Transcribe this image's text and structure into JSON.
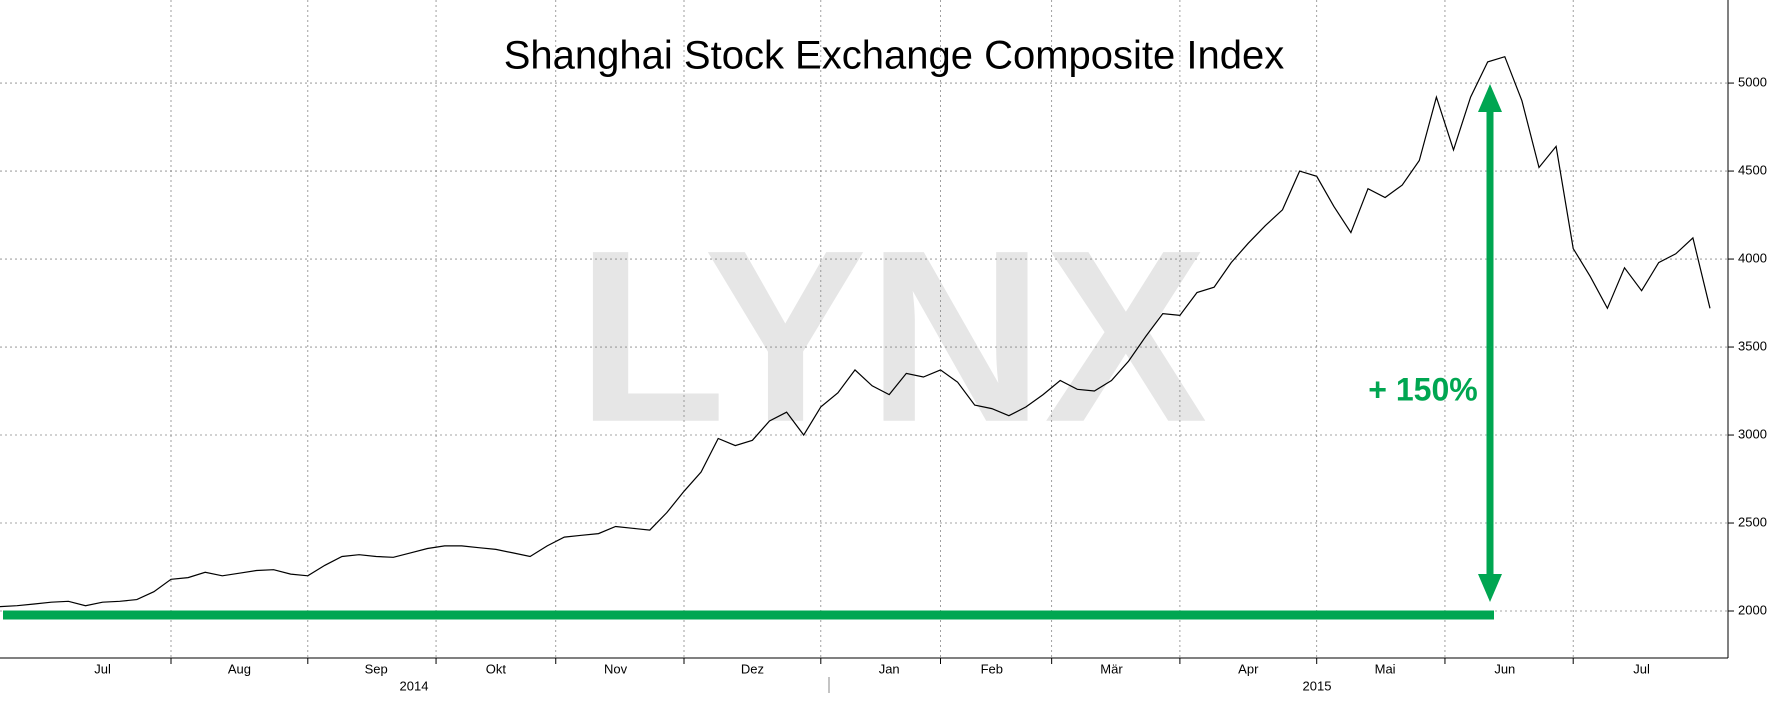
{
  "chart_data": {
    "type": "line",
    "title": "Shanghai Stock Exchange Composite Index",
    "watermark": "LYNX",
    "annotation": "+ 150%",
    "categories": [
      null,
      null,
      null,
      null,
      null,
      null,
      "Jul",
      null,
      null,
      null,
      null,
      null,
      null,
      null,
      "Aug",
      null,
      null,
      null,
      null,
      null,
      null,
      null,
      "Sep",
      null,
      null,
      null,
      null,
      null,
      null,
      "Okt",
      null,
      null,
      null,
      null,
      null,
      null,
      "Nov",
      null,
      null,
      null,
      null,
      null,
      null,
      null,
      "Dez",
      null,
      null,
      null,
      null,
      null,
      null,
      null,
      "Jan",
      null,
      null,
      null,
      null,
      null,
      "Feb",
      null,
      null,
      null,
      null,
      null,
      null,
      "Mär",
      null,
      null,
      null,
      null,
      null,
      null,
      null,
      "Apr",
      null,
      null,
      null,
      null,
      null,
      null,
      null,
      "Mai",
      null,
      null,
      null,
      null,
      null,
      null,
      "Jun",
      null,
      null,
      null,
      null,
      null,
      null,
      null,
      "Jul",
      null,
      null,
      null,
      null
    ],
    "x_group_labels": [
      "2014",
      "2015"
    ],
    "series": [
      {
        "name": "Shanghai Composite",
        "color": "#000000",
        "values": [
          2025,
          2030,
          2040,
          2050,
          2055,
          2030,
          2050,
          2055,
          2065,
          2110,
          2180,
          2190,
          2220,
          2200,
          2215,
          2230,
          2235,
          2210,
          2200,
          2260,
          2310,
          2320,
          2310,
          2305,
          2330,
          2355,
          2370,
          2370,
          2360,
          2350,
          2330,
          2310,
          2370,
          2420,
          2430,
          2440,
          2480,
          2470,
          2460,
          2560,
          2680,
          2790,
          2980,
          2940,
          2970,
          3080,
          3130,
          3000,
          3160,
          3240,
          3370,
          3280,
          3230,
          3350,
          3330,
          3370,
          3300,
          3170,
          3150,
          3110,
          3160,
          3230,
          3310,
          3260,
          3250,
          3310,
          3420,
          3560,
          3690,
          3680,
          3810,
          3840,
          3980,
          4090,
          4190,
          4280,
          4500,
          4470,
          4300,
          4150,
          4400,
          4350,
          4420,
          4560,
          4920,
          4620,
          4920,
          5120,
          5150,
          4900,
          4520,
          4640,
          4060,
          3900,
          3720,
          3950,
          3820,
          3980,
          4030,
          4120,
          3720
        ]
      }
    ],
    "ylim": [
      1733,
      5472
    ],
    "yticks": [
      2000,
      2500,
      3000,
      3500,
      4000,
      4500,
      5000
    ],
    "grid": true,
    "y_axis_side": "right"
  }
}
